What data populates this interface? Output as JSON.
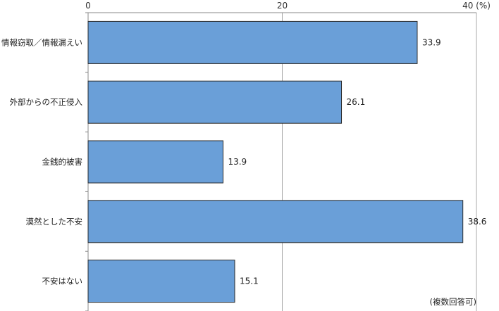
{
  "chart_data": {
    "type": "bar",
    "orientation": "horizontal",
    "categories": [
      "情報窃取／情報漏えい",
      "外部からの不正侵入",
      "金銭的被害",
      "漠然とした不安",
      "不安はない"
    ],
    "values": [
      33.9,
      26.1,
      13.9,
      38.6,
      15.1
    ],
    "value_labels": [
      "33.9",
      "26.1",
      "13.9",
      "38.6",
      "15.1"
    ],
    "xlim": [
      0,
      40
    ],
    "x_ticks": [
      0,
      20,
      40
    ],
    "x_tick_labels": [
      "0",
      "20",
      "40 (%)"
    ],
    "grid": true,
    "note": "(複数回答可)",
    "bar_color": "#6a9fd8",
    "bar_edge_color": "#2b2b2b"
  }
}
